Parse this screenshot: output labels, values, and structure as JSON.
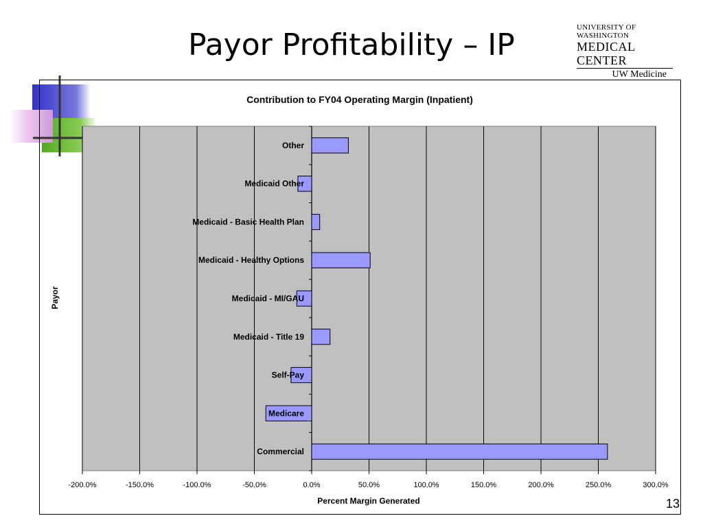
{
  "slide": {
    "title": "Payor Profitability – IP",
    "page_number": "13"
  },
  "logo": {
    "line1": "UNIVERSITY OF WASHINGTON",
    "line2": "MEDICAL CENTER",
    "line3": "UW Medicine"
  },
  "colors": {
    "plot_background": "#c0c0c0",
    "bar_fill": "#9999ff",
    "bar_stroke": "#000000",
    "deco_blue": "#3333cc",
    "deco_green": "#66bb33",
    "deco_pink": "#e8b8e8"
  },
  "chart_data": {
    "type": "bar",
    "orientation": "horizontal",
    "title": "Contribution to FY04 Operating Margin (Inpatient)",
    "xlabel": "Percent Margin Generated",
    "ylabel": "Payor",
    "categories": [
      "Other",
      "Medicaid Other",
      "Medicaid - Basic Health Plan",
      "Medicaid - Healthy Options",
      "Medicaid - MI/GAU",
      "Medicaid - Title 19",
      "Self-Pay",
      "Medicare",
      "Commercial"
    ],
    "values": [
      32,
      -12,
      7,
      51,
      -13,
      16,
      -18,
      -40,
      258
    ],
    "xlim": [
      -200,
      300
    ],
    "xticks": [
      -200,
      -150,
      -100,
      -50,
      0,
      50,
      100,
      150,
      200,
      250,
      300
    ],
    "xtick_labels": [
      "-200.0%",
      "-150.0%",
      "-100.0%",
      "-50.0%",
      "0.0%",
      "50.0%",
      "100.0%",
      "150.0%",
      "200.0%",
      "250.0%",
      "300.0%"
    ],
    "grid": true,
    "legend": "none"
  }
}
